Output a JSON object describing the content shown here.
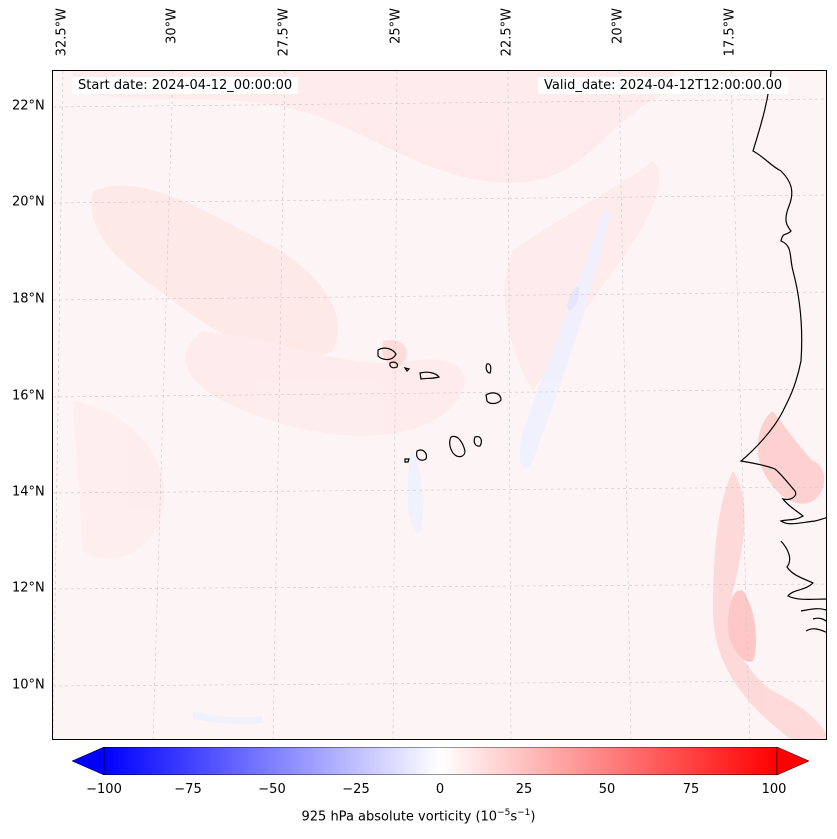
{
  "map": {
    "start_date": "Start date: 2024-04-12_00:00:00",
    "valid_date": "Valid_date: 2024-04-12T12:00:00.00",
    "longitude_labels": [
      "32.5°W",
      "30°W",
      "27.5°W",
      "25°W",
      "22.5°W",
      "20°W",
      "17.5°W"
    ],
    "latitude_labels": [
      "22°N",
      "20°N",
      "18°N",
      "16°N",
      "14°N",
      "12°N",
      "10°N"
    ],
    "field_color": "#fdf5f5",
    "positive_color": "#ffd8d8",
    "negative_color": "#eef0ff"
  },
  "colorbar": {
    "min": -100,
    "max": 100,
    "ticks": [
      "−100",
      "−75",
      "−50",
      "−25",
      "0",
      "25",
      "50",
      "75",
      "100"
    ],
    "label_prefix": "925 hPa absolute vorticity (10",
    "label_exp1": "−5",
    "label_mid": "s",
    "label_exp2": "−1",
    "label_suffix": ")",
    "low_color": "#0000ff",
    "high_color": "#ff0000"
  }
}
